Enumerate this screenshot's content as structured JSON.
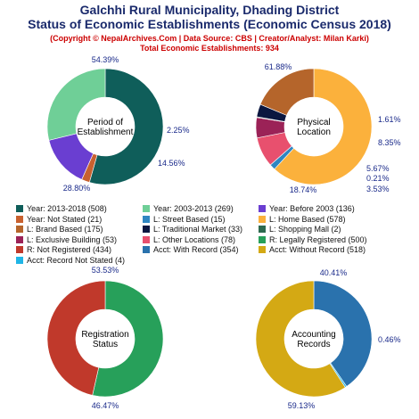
{
  "header": {
    "title_line1": "Galchhi Rural Municipality, Dhading District",
    "title_line2": "Status of Economic Establishments (Economic Census 2018)",
    "copyright": "(Copyright © NepalArchives.Com | Data Source: CBS | Creator/Analyst: Milan Karki)",
    "total": "Total Economic Establishments: 934"
  },
  "chart_data": [
    {
      "type": "pie",
      "center_label": [
        "Period of",
        "Establishment"
      ],
      "slices": [
        {
          "label": "Year: 2013-2018",
          "value": 508,
          "percent_label": "54.39%",
          "color": "#0f5e5a"
        },
        {
          "label": "Year: Not Stated",
          "value": 21,
          "percent_label": "2.25%",
          "color": "#c8612f"
        },
        {
          "label": "Year: Before 2003",
          "value": 136,
          "percent_label": "14.56%",
          "color": "#6a3ed1"
        },
        {
          "label": "Year: 2003-2013",
          "value": 269,
          "percent_label": "28.80%",
          "color": "#6fcf97"
        }
      ]
    },
    {
      "type": "pie",
      "center_label": [
        "Physical",
        "Location"
      ],
      "slices": [
        {
          "label": "L: Home Based",
          "value": 578,
          "percent_label": "61.88%",
          "color": "#fbb13c"
        },
        {
          "label": "L: Street Based",
          "value": 15,
          "percent_label": "1.61%",
          "color": "#2f86c1"
        },
        {
          "label": "L: Other Locations",
          "value": 78,
          "percent_label": "8.35%",
          "color": "#e8506e"
        },
        {
          "label": "L: Exclusive Building",
          "value": 53,
          "percent_label": "5.67%",
          "color": "#9b2257"
        },
        {
          "label": "L: Shopping Mall",
          "value": 2,
          "percent_label": "0.21%",
          "color": "#2d6a4f"
        },
        {
          "label": "L: Traditional Market",
          "value": 33,
          "percent_label": "3.53%",
          "color": "#0b1740"
        },
        {
          "label": "L: Brand Based",
          "value": 175,
          "percent_label": "18.74%",
          "color": "#b5652b"
        }
      ]
    },
    {
      "type": "pie",
      "center_label": [
        "Registration",
        "Status"
      ],
      "slices": [
        {
          "label": "R: Legally Registered",
          "value": 500,
          "percent_label": "53.53%",
          "color": "#27a05a"
        },
        {
          "label": "R: Not Registered",
          "value": 434,
          "percent_label": "46.47%",
          "color": "#c0392b"
        }
      ]
    },
    {
      "type": "pie",
      "center_label": [
        "Accounting",
        "Records"
      ],
      "slices": [
        {
          "label": "Acct: With Record",
          "value": 354,
          "percent_label": "40.41%",
          "color": "#2a72ad"
        },
        {
          "label": "Acct: Record Not Stated",
          "value": 4,
          "percent_label": "0.46%",
          "color": "#1fb5e6"
        },
        {
          "label": "Acct: Without Record",
          "value": 518,
          "percent_label": "59.13%",
          "color": "#d4a914"
        }
      ]
    }
  ],
  "legend": [
    {
      "text": "Year: 2013-2018 (508)",
      "color": "#0f5e5a"
    },
    {
      "text": "Year: 2003-2013 (269)",
      "color": "#6fcf97"
    },
    {
      "text": "Year: Before 2003 (136)",
      "color": "#6a3ed1"
    },
    {
      "text": "Year: Not Stated (21)",
      "color": "#c8612f"
    },
    {
      "text": "L: Street Based (15)",
      "color": "#2f86c1"
    },
    {
      "text": "L: Home Based (578)",
      "color": "#fbb13c"
    },
    {
      "text": "L: Brand Based (175)",
      "color": "#b5652b"
    },
    {
      "text": "L: Traditional Market (33)",
      "color": "#0b1740"
    },
    {
      "text": "L: Shopping Mall (2)",
      "color": "#2d6a4f"
    },
    {
      "text": "L: Exclusive Building (53)",
      "color": "#9b2257"
    },
    {
      "text": "L: Other Locations (78)",
      "color": "#e8506e"
    },
    {
      "text": "R: Legally Registered (500)",
      "color": "#27a05a"
    },
    {
      "text": "R: Not Registered (434)",
      "color": "#c0392b"
    },
    {
      "text": "Acct: With Record (354)",
      "color": "#2a72ad"
    },
    {
      "text": "Acct: Without Record (518)",
      "color": "#d4a914"
    },
    {
      "text": "Acct: Record Not Stated (4)",
      "color": "#1fb5e6"
    }
  ]
}
